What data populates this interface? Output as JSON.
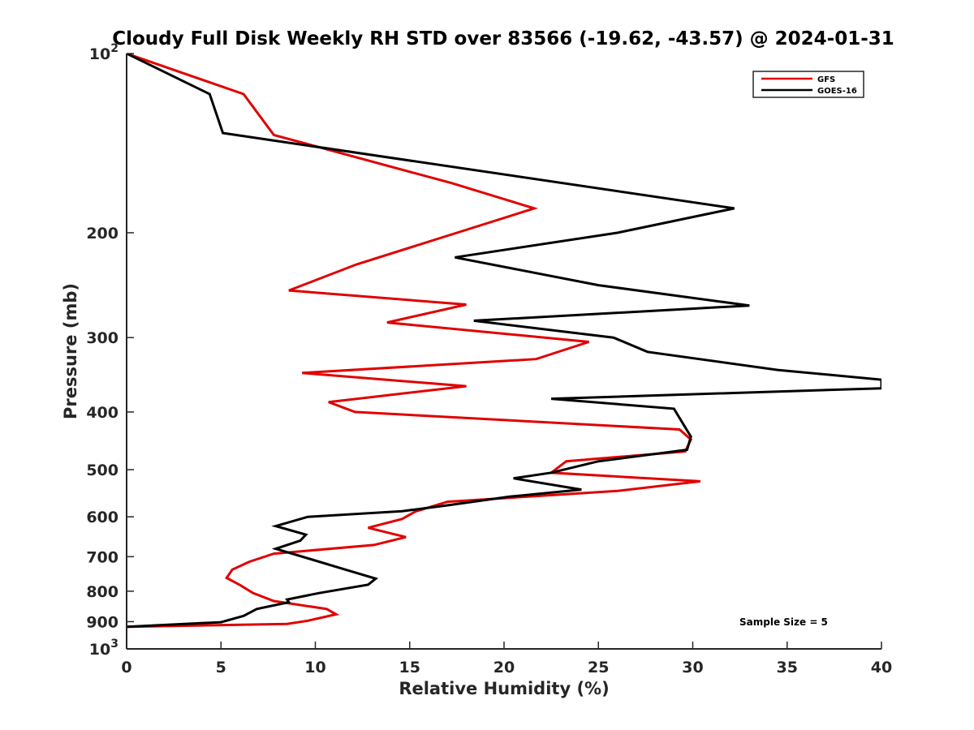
{
  "chart_data": {
    "type": "line",
    "title": "Cloudy Full Disk Weekly RH STD over 83566 (-19.62, -43.57) @ 2024-01-31",
    "xlabel": "Relative Humidity (%)",
    "ylabel": "Pressure (mb)",
    "xlim": [
      0,
      40
    ],
    "ylim": [
      100,
      1000
    ],
    "yscale": "log",
    "y_reversed": true,
    "grid": false,
    "legend_position": "top-right",
    "x_ticks": [
      "0",
      "5",
      "10",
      "15",
      "20",
      "25",
      "30",
      "35",
      "40"
    ],
    "x_tick_values": [
      0,
      5,
      10,
      15,
      20,
      25,
      30,
      35,
      40
    ],
    "y_ticks": [
      {
        "value": 100,
        "base": "10",
        "exp": "2"
      },
      {
        "value": 200,
        "label": "200"
      },
      {
        "value": 300,
        "label": "300"
      },
      {
        "value": 400,
        "label": "400"
      },
      {
        "value": 500,
        "label": "500"
      },
      {
        "value": 600,
        "label": "600"
      },
      {
        "value": 700,
        "label": "700"
      },
      {
        "value": 800,
        "label": "800"
      },
      {
        "value": 900,
        "label": "900"
      },
      {
        "value": 1000,
        "base": "10",
        "exp": "3"
      }
    ],
    "series": [
      {
        "name": "GFS",
        "color": "#e00000",
        "x": [
          0,
          6.2,
          7.8,
          17.2,
          21.6,
          17.5,
          12.2,
          8.6,
          18.0,
          13.8,
          24.5,
          21.7,
          9.3,
          18.0,
          10.7,
          12.1,
          29.3,
          29.9,
          29.6,
          23.3,
          22.5,
          30.4,
          26.0,
          17.0,
          15.3,
          14.6,
          12.8,
          14.8,
          13.1,
          7.8,
          6.5,
          5.6,
          5.3,
          6.0,
          6.7,
          7.8,
          10.6,
          11.1,
          9.6,
          8.5,
          0
        ],
        "y": [
          100,
          117,
          137,
          165,
          182,
          200,
          226,
          250,
          264,
          283,
          305,
          326,
          344,
          362,
          385,
          400,
          428,
          445,
          466,
          484,
          506,
          523,
          543,
          566,
          588,
          605,
          626,
          649,
          669,
          692,
          714,
          736,
          760,
          781,
          806,
          831,
          857,
          875,
          897,
          908,
          918
        ],
        "x_ticks_unused": []
      },
      {
        "name": "GOES-16",
        "color": "#000000",
        "x": [
          0,
          4.4,
          5.1,
          32.2,
          26.0,
          17.4,
          25.0,
          33.0,
          18.4,
          25.8,
          27.6,
          34.5,
          40.0,
          40.0,
          22.5,
          29.0,
          29.9,
          29.7,
          25.0,
          22.5,
          20.5,
          24.1,
          20.3,
          17.0,
          14.6,
          9.6,
          7.9,
          9.5,
          9.2,
          7.9,
          9.7,
          11.6,
          13.2,
          12.8,
          10.2,
          8.5,
          8.6,
          6.9,
          6.2,
          5.0,
          0
        ],
        "y": [
          100,
          117,
          136,
          182,
          200,
          220,
          245,
          265,
          281,
          300,
          317,
          340,
          353,
          365,
          380,
          395,
          440,
          463,
          484,
          506,
          517,
          540,
          555,
          574,
          587,
          600,
          622,
          643,
          658,
          679,
          706,
          736,
          762,
          780,
          806,
          826,
          835,
          857,
          880,
          902,
          918
        ]
      }
    ]
  },
  "annotation": "Sample Size = 5"
}
